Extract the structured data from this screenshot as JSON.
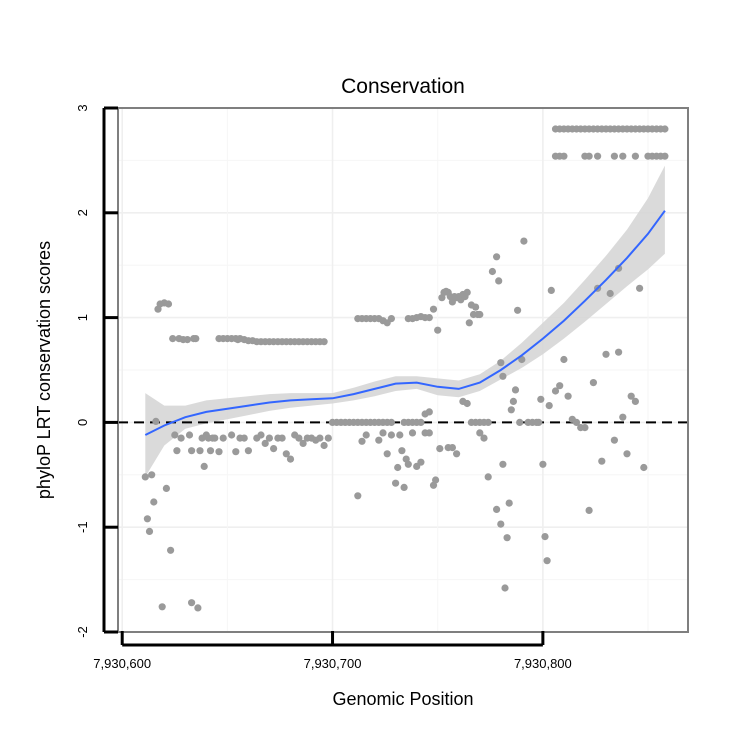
{
  "chart_data": {
    "type": "scatter",
    "title": "Conservation",
    "xlabel": "Genomic Position",
    "ylabel": "phyloP LRT conservation scores",
    "xlim": [
      7930598,
      7930869
    ],
    "ylim": [
      -2,
      3
    ],
    "xticks": [
      7930600,
      7930700,
      7930800
    ],
    "xtick_labels": [
      "7,930,600",
      "7,930,700",
      "7,930,800"
    ],
    "yticks": [
      -2,
      -1,
      0,
      1,
      2,
      3
    ],
    "ytick_labels": [
      "-2",
      "-1",
      "0",
      "1",
      "2",
      "3"
    ],
    "grid": true,
    "reference_line": {
      "y": 0,
      "style": "dashed"
    },
    "colors": {
      "points": "#9a9a9a",
      "smooth": "#3366ff",
      "band": "#d4d4d4",
      "frame": "#7f7f7f"
    },
    "points": [
      [
        7930611,
        -0.52
      ],
      [
        7930612,
        -0.92
      ],
      [
        7930613,
        -1.04
      ],
      [
        7930614,
        -0.5
      ],
      [
        7930615,
        -0.76
      ],
      [
        7930616,
        0.01
      ],
      [
        7930617,
        1.08
      ],
      [
        7930618,
        1.13
      ],
      [
        7930620,
        1.14
      ],
      [
        7930622,
        1.13
      ],
      [
        7930619,
        -1.76
      ],
      [
        7930621,
        -0.63
      ],
      [
        7930623,
        -1.22
      ],
      [
        7930624,
        0.8
      ],
      [
        7930625,
        -0.12
      ],
      [
        7930626,
        -0.27
      ],
      [
        7930627,
        0.8
      ],
      [
        7930628,
        -0.15
      ],
      [
        7930629,
        0.79
      ],
      [
        7930631,
        0.79
      ],
      [
        7930632,
        -0.12
      ],
      [
        7930633,
        -0.27
      ],
      [
        7930634,
        0.8
      ],
      [
        7930635,
        0.8
      ],
      [
        7930633,
        -1.72
      ],
      [
        7930636,
        -1.77
      ],
      [
        7930637,
        -0.27
      ],
      [
        7930638,
        -0.15
      ],
      [
        7930639,
        -0.42
      ],
      [
        7930640,
        -0.12
      ],
      [
        7930641,
        -0.15
      ],
      [
        7930642,
        -0.27
      ],
      [
        7930643,
        -0.15
      ],
      [
        7930644,
        -0.15
      ],
      [
        7930646,
        0.8
      ],
      [
        7930648,
        0.8
      ],
      [
        7930650,
        0.8
      ],
      [
        7930652,
        0.8
      ],
      [
        7930654,
        0.8
      ],
      [
        7930655,
        0.79
      ],
      [
        7930656,
        0.8
      ],
      [
        7930658,
        0.79
      ],
      [
        7930660,
        0.78
      ],
      [
        7930662,
        0.78
      ],
      [
        7930664,
        0.77
      ],
      [
        7930666,
        0.77
      ],
      [
        7930668,
        0.77
      ],
      [
        7930670,
        0.77
      ],
      [
        7930672,
        0.77
      ],
      [
        7930674,
        0.77
      ],
      [
        7930676,
        0.77
      ],
      [
        7930678,
        0.77
      ],
      [
        7930680,
        0.77
      ],
      [
        7930682,
        0.77
      ],
      [
        7930684,
        0.77
      ],
      [
        7930686,
        0.77
      ],
      [
        7930688,
        0.77
      ],
      [
        7930690,
        0.77
      ],
      [
        7930692,
        0.77
      ],
      [
        7930694,
        0.77
      ],
      [
        7930696,
        0.77
      ],
      [
        7930646,
        -0.28
      ],
      [
        7930648,
        -0.15
      ],
      [
        7930652,
        -0.12
      ],
      [
        7930654,
        -0.28
      ],
      [
        7930656,
        -0.15
      ],
      [
        7930658,
        -0.15
      ],
      [
        7930660,
        -0.27
      ],
      [
        7930664,
        -0.15
      ],
      [
        7930666,
        -0.12
      ],
      [
        7930668,
        -0.2
      ],
      [
        7930670,
        -0.15
      ],
      [
        7930672,
        -0.25
      ],
      [
        7930674,
        -0.15
      ],
      [
        7930676,
        -0.15
      ],
      [
        7930678,
        -0.3
      ],
      [
        7930680,
        -0.35
      ],
      [
        7930682,
        -0.12
      ],
      [
        7930684,
        -0.15
      ],
      [
        7930686,
        -0.2
      ],
      [
        7930688,
        -0.15
      ],
      [
        7930690,
        -0.15
      ],
      [
        7930692,
        -0.17
      ],
      [
        7930694,
        -0.15
      ],
      [
        7930696,
        -0.22
      ],
      [
        7930698,
        -0.15
      ],
      [
        7930700,
        0.0
      ],
      [
        7930702,
        0.0
      ],
      [
        7930704,
        0.0
      ],
      [
        7930706,
        0.0
      ],
      [
        7930708,
        0.0
      ],
      [
        7930710,
        0.0
      ],
      [
        7930712,
        0.0
      ],
      [
        7930714,
        0.0
      ],
      [
        7930716,
        0.0
      ],
      [
        7930718,
        0.0
      ],
      [
        7930720,
        0.0
      ],
      [
        7930722,
        0.0
      ],
      [
        7930724,
        0.0
      ],
      [
        7930726,
        0.0
      ],
      [
        7930728,
        0.0
      ],
      [
        7930712,
        0.99
      ],
      [
        7930714,
        0.99
      ],
      [
        7930716,
        0.99
      ],
      [
        7930718,
        0.99
      ],
      [
        7930720,
        0.99
      ],
      [
        7930722,
        0.99
      ],
      [
        7930724,
        0.97
      ],
      [
        7930726,
        0.95
      ],
      [
        7930728,
        0.99
      ],
      [
        7930712,
        -0.7
      ],
      [
        7930714,
        -0.18
      ],
      [
        7930716,
        -0.12
      ],
      [
        7930722,
        -0.17
      ],
      [
        7930724,
        -0.1
      ],
      [
        7930726,
        -0.3
      ],
      [
        7930728,
        -0.12
      ],
      [
        7930730,
        -0.58
      ],
      [
        7930731,
        -0.43
      ],
      [
        7930732,
        -0.12
      ],
      [
        7930733,
        -0.27
      ],
      [
        7930734,
        -0.62
      ],
      [
        7930735,
        -0.35
      ],
      [
        7930736,
        -0.4
      ],
      [
        7930738,
        -0.1
      ],
      [
        7930740,
        -0.42
      ],
      [
        7930742,
        -0.38
      ],
      [
        7930744,
        -0.1
      ],
      [
        7930746,
        -0.1
      ],
      [
        7930748,
        -0.6
      ],
      [
        7930749,
        -0.55
      ],
      [
        7930751,
        -0.25
      ],
      [
        7930734,
        0.0
      ],
      [
        7930736,
        0.0
      ],
      [
        7930738,
        0.0
      ],
      [
        7930740,
        0.0
      ],
      [
        7930742,
        0.0
      ],
      [
        7930744,
        0.08
      ],
      [
        7930746,
        0.1
      ],
      [
        7930736,
        0.99
      ],
      [
        7930738,
        0.99
      ],
      [
        7930740,
        1.0
      ],
      [
        7930742,
        1.01
      ],
      [
        7930744,
        1.0
      ],
      [
        7930746,
        1.0
      ],
      [
        7930748,
        1.08
      ],
      [
        7930750,
        0.88
      ],
      [
        7930752,
        1.19
      ],
      [
        7930753,
        1.24
      ],
      [
        7930754,
        1.25
      ],
      [
        7930755,
        1.24
      ],
      [
        7930756,
        1.2
      ],
      [
        7930757,
        1.15
      ],
      [
        7930758,
        1.2
      ],
      [
        7930759,
        1.19
      ],
      [
        7930760,
        1.2
      ],
      [
        7930761,
        1.17
      ],
      [
        7930762,
        1.22
      ],
      [
        7930763,
        1.2
      ],
      [
        7930764,
        1.24
      ],
      [
        7930765,
        0.95
      ],
      [
        7930766,
        1.12
      ],
      [
        7930767,
        1.03
      ],
      [
        7930768,
        1.1
      ],
      [
        7930769,
        1.03
      ],
      [
        7930770,
        1.03
      ],
      [
        7930755,
        -0.24
      ],
      [
        7930757,
        -0.24
      ],
      [
        7930759,
        -0.3
      ],
      [
        7930762,
        0.2
      ],
      [
        7930764,
        0.18
      ],
      [
        7930766,
        0.0
      ],
      [
        7930768,
        0.0
      ],
      [
        7930770,
        0.0
      ],
      [
        7930772,
        0.0
      ],
      [
        7930774,
        0.0
      ],
      [
        7930770,
        -0.1
      ],
      [
        7930772,
        -0.15
      ],
      [
        7930774,
        -0.52
      ],
      [
        7930776,
        1.44
      ],
      [
        7930778,
        1.58
      ],
      [
        7930779,
        1.35
      ],
      [
        7930780,
        0.57
      ],
      [
        7930781,
        0.44
      ],
      [
        7930778,
        -0.83
      ],
      [
        7930780,
        -0.97
      ],
      [
        7930781,
        -0.4
      ],
      [
        7930783,
        -1.1
      ],
      [
        7930784,
        -0.77
      ],
      [
        7930782,
        -1.58
      ],
      [
        7930785,
        0.12
      ],
      [
        7930786,
        0.2
      ],
      [
        7930787,
        0.31
      ],
      [
        7930788,
        1.07
      ],
      [
        7930789,
        0.0
      ],
      [
        7930790,
        0.6
      ],
      [
        7930791,
        1.73
      ],
      [
        7930793,
        0.0
      ],
      [
        7930795,
        0.0
      ],
      [
        7930797,
        0.0
      ],
      [
        7930798,
        0.0
      ],
      [
        7930799,
        0.22
      ],
      [
        7930800,
        -0.4
      ],
      [
        7930801,
        -1.09
      ],
      [
        7930802,
        -1.32
      ],
      [
        7930803,
        0.16
      ],
      [
        7930804,
        1.26
      ],
      [
        7930806,
        0.3
      ],
      [
        7930808,
        0.35
      ],
      [
        7930810,
        0.6
      ],
      [
        7930812,
        0.25
      ],
      [
        7930814,
        0.03
      ],
      [
        7930816,
        0.0
      ],
      [
        7930818,
        -0.05
      ],
      [
        7930820,
        -0.05
      ],
      [
        7930822,
        -0.84
      ],
      [
        7930824,
        0.38
      ],
      [
        7930826,
        1.28
      ],
      [
        7930828,
        -0.37
      ],
      [
        7930830,
        0.65
      ],
      [
        7930832,
        1.23
      ],
      [
        7930834,
        -0.17
      ],
      [
        7930836,
        1.47
      ],
      [
        7930836,
        0.67
      ],
      [
        7930838,
        0.05
      ],
      [
        7930840,
        -0.3
      ],
      [
        7930842,
        0.25
      ],
      [
        7930844,
        0.2
      ],
      [
        7930846,
        1.28
      ],
      [
        7930848,
        -0.43
      ],
      [
        7930806,
        2.8
      ],
      [
        7930808,
        2.8
      ],
      [
        7930810,
        2.8
      ],
      [
        7930812,
        2.8
      ],
      [
        7930814,
        2.8
      ],
      [
        7930816,
        2.8
      ],
      [
        7930818,
        2.8
      ],
      [
        7930820,
        2.8
      ],
      [
        7930822,
        2.8
      ],
      [
        7930824,
        2.8
      ],
      [
        7930826,
        2.8
      ],
      [
        7930828,
        2.8
      ],
      [
        7930830,
        2.8
      ],
      [
        7930832,
        2.8
      ],
      [
        7930834,
        2.8
      ],
      [
        7930836,
        2.8
      ],
      [
        7930838,
        2.8
      ],
      [
        7930840,
        2.8
      ],
      [
        7930842,
        2.8
      ],
      [
        7930844,
        2.8
      ],
      [
        7930846,
        2.8
      ],
      [
        7930848,
        2.8
      ],
      [
        7930850,
        2.8
      ],
      [
        7930852,
        2.8
      ],
      [
        7930854,
        2.8
      ],
      [
        7930856,
        2.8
      ],
      [
        7930858,
        2.8
      ],
      [
        7930806,
        2.54
      ],
      [
        7930808,
        2.54
      ],
      [
        7930810,
        2.54
      ],
      [
        7930820,
        2.54
      ],
      [
        7930822,
        2.54
      ],
      [
        7930826,
        2.54
      ],
      [
        7930834,
        2.54
      ],
      [
        7930838,
        2.54
      ],
      [
        7930844,
        2.54
      ],
      [
        7930850,
        2.54
      ],
      [
        7930852,
        2.54
      ],
      [
        7930854,
        2.54
      ],
      [
        7930856,
        2.54
      ],
      [
        7930858,
        2.54
      ]
    ],
    "smooth_line": {
      "x": [
        7930611,
        7930620,
        7930630,
        7930640,
        7930650,
        7930660,
        7930670,
        7930680,
        7930690,
        7930700,
        7930710,
        7930720,
        7930730,
        7930740,
        7930750,
        7930760,
        7930770,
        7930780,
        7930790,
        7930800,
        7930810,
        7930820,
        7930830,
        7930840,
        7930850,
        7930858
      ],
      "y": [
        -0.12,
        -0.03,
        0.05,
        0.1,
        0.13,
        0.16,
        0.19,
        0.21,
        0.22,
        0.23,
        0.27,
        0.32,
        0.37,
        0.38,
        0.34,
        0.32,
        0.38,
        0.5,
        0.64,
        0.8,
        0.97,
        1.16,
        1.36,
        1.57,
        1.8,
        2.02
      ],
      "lower": [
        -0.52,
        -0.22,
        -0.06,
        -0.01,
        0.03,
        0.07,
        0.11,
        0.14,
        0.16,
        0.18,
        0.21,
        0.25,
        0.3,
        0.32,
        0.26,
        0.24,
        0.3,
        0.41,
        0.52,
        0.65,
        0.8,
        0.96,
        1.13,
        1.3,
        1.46,
        1.61
      ],
      "upper": [
        0.28,
        0.16,
        0.16,
        0.21,
        0.23,
        0.25,
        0.27,
        0.28,
        0.28,
        0.28,
        0.33,
        0.39,
        0.44,
        0.44,
        0.42,
        0.4,
        0.46,
        0.59,
        0.76,
        0.95,
        1.14,
        1.36,
        1.59,
        1.84,
        2.14,
        2.45
      ]
    }
  }
}
